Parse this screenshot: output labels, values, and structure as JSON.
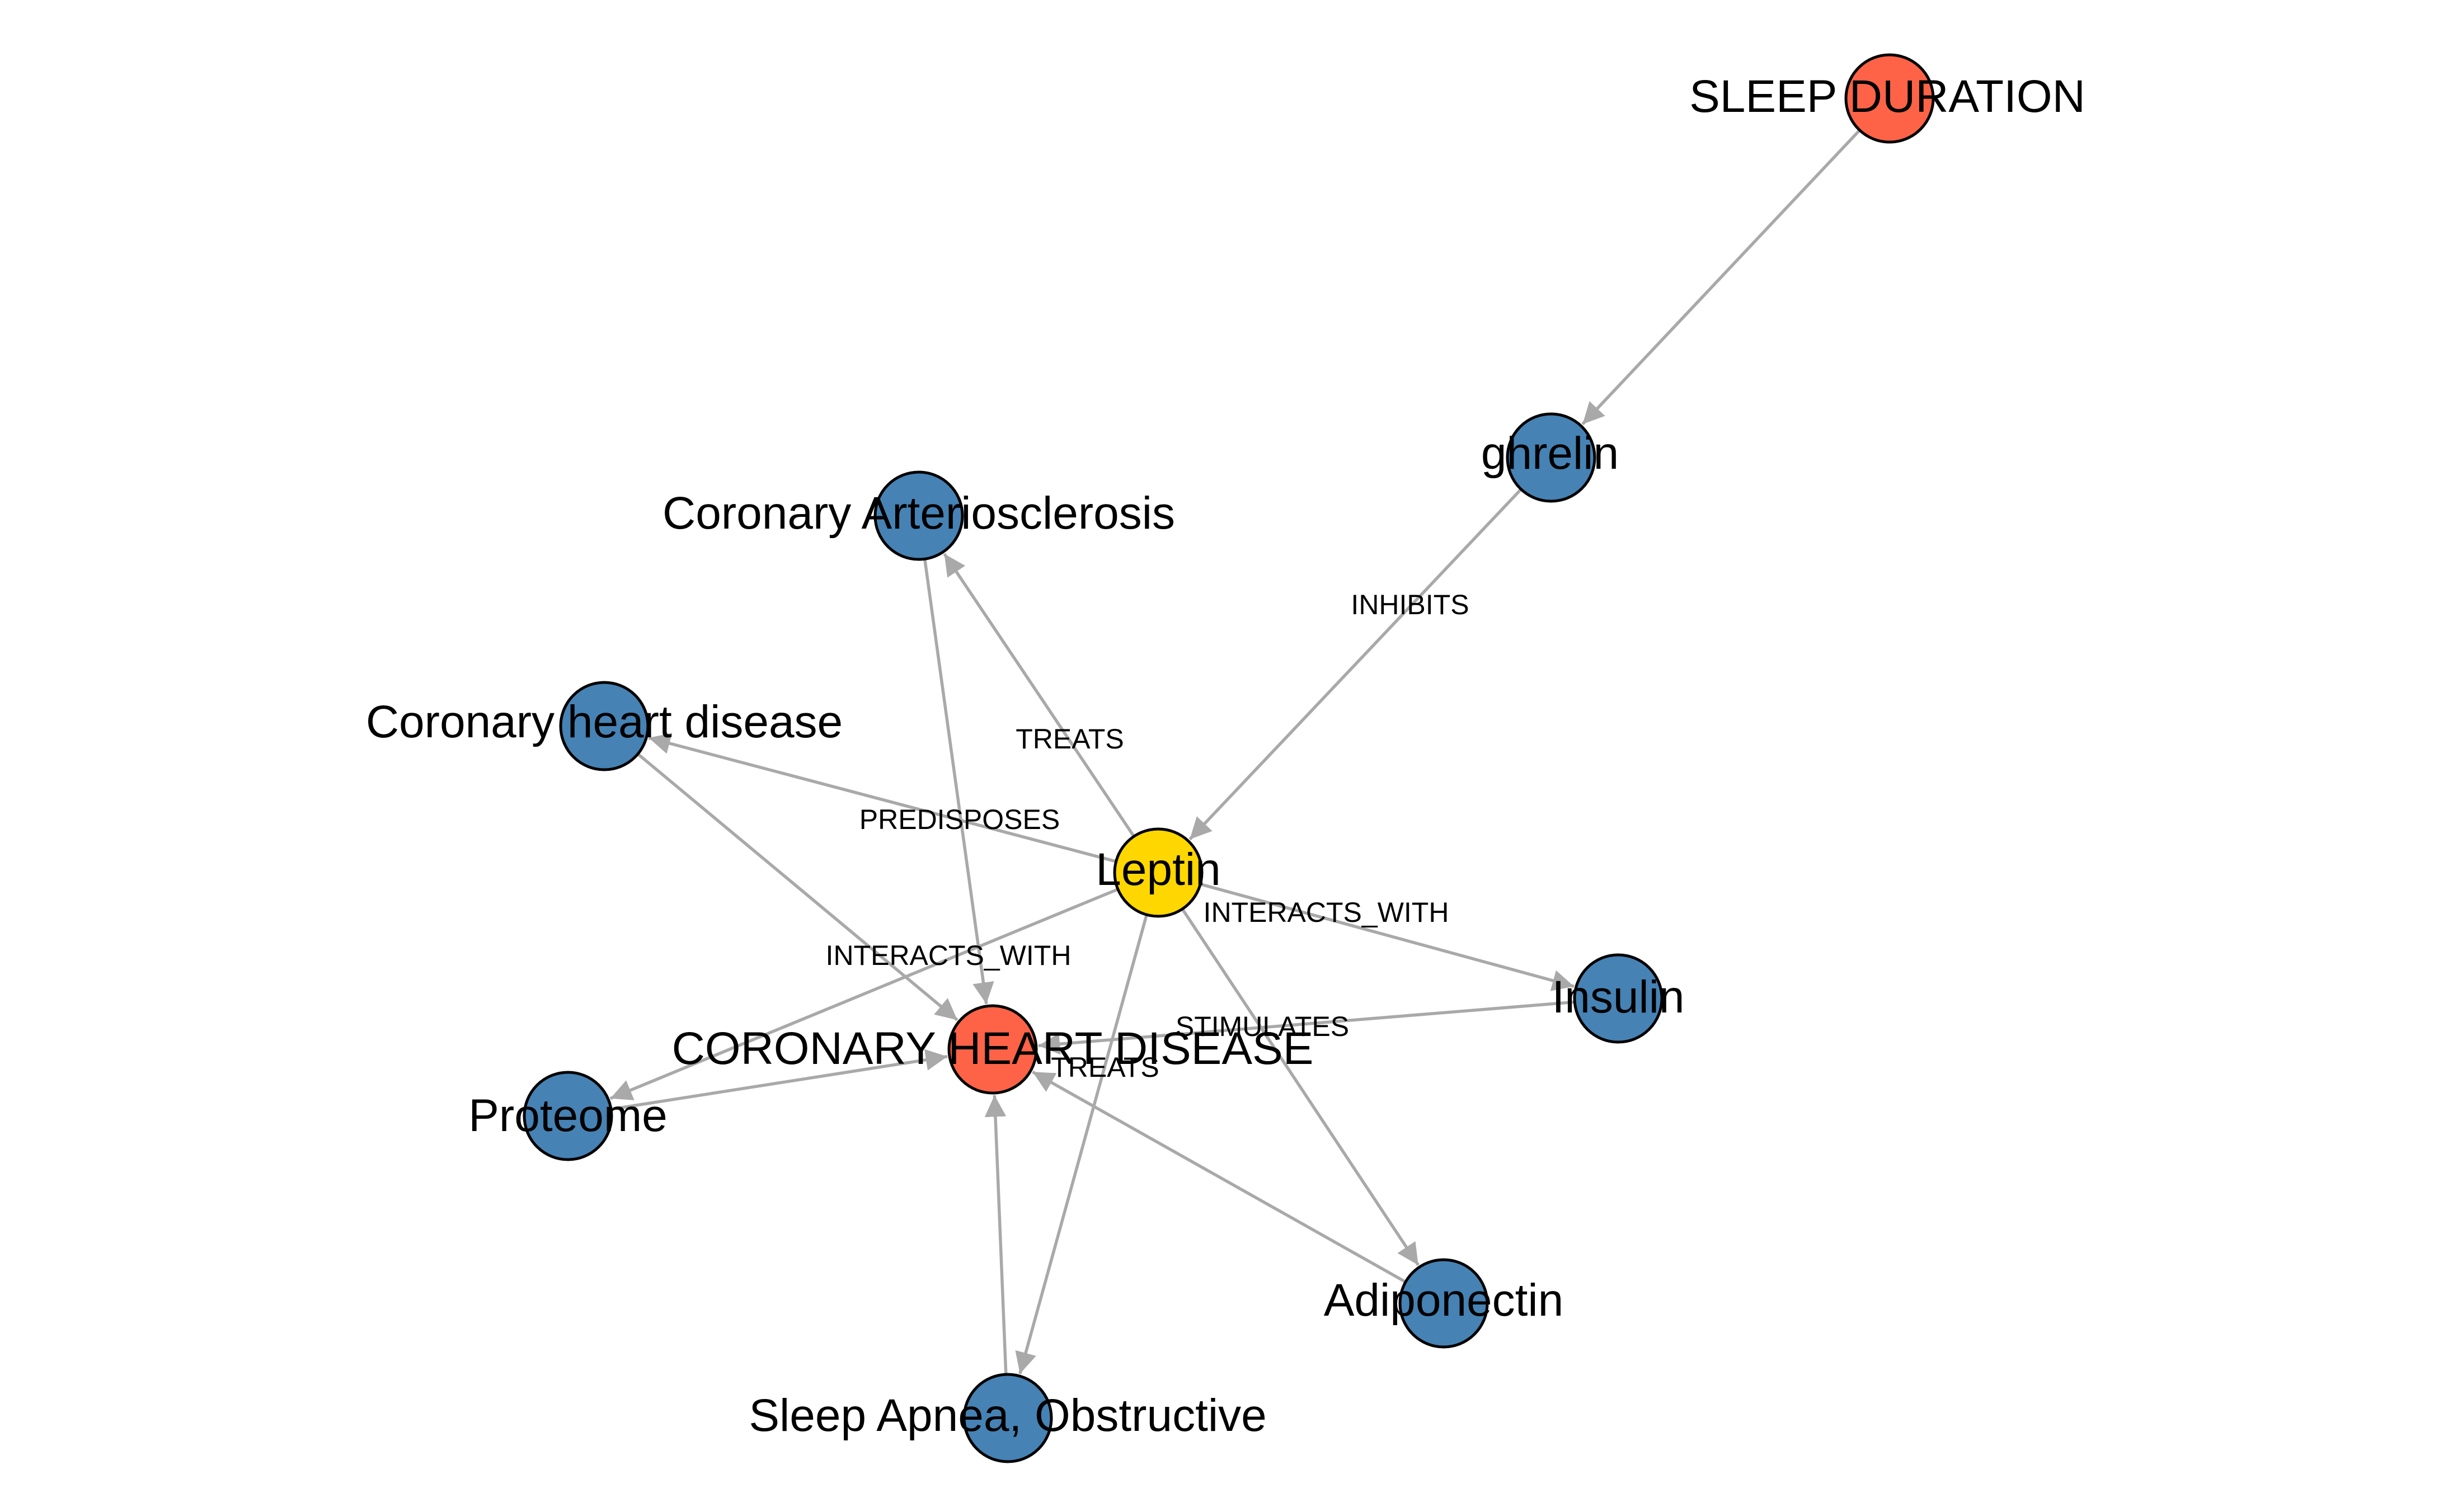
{
  "diagram": {
    "type": "network-graph",
    "colors": {
      "edge": "#a9a9a9",
      "node_outline": "#000000",
      "intermediate": "#4682b4",
      "endpoint": "#ff6347",
      "focus": "#ffd700"
    },
    "nodes": [
      {
        "id": "sleep_duration",
        "label": "SLEEP DURATION",
        "role": "endpoint"
      },
      {
        "id": "ghrelin",
        "label": "ghrelin",
        "role": "intermediate"
      },
      {
        "id": "coronary_arteriosclerosis",
        "label": "Coronary Arteriosclerosis",
        "role": "intermediate"
      },
      {
        "id": "coronary_heart_disease_lc",
        "label": "Coronary heart disease",
        "role": "intermediate"
      },
      {
        "id": "leptin",
        "label": "Leptin",
        "role": "focus"
      },
      {
        "id": "insulin",
        "label": "Insulin",
        "role": "intermediate"
      },
      {
        "id": "coronary_heart_disease",
        "label": "CORONARY HEART DISEASE",
        "role": "endpoint"
      },
      {
        "id": "proteome",
        "label": "Proteome",
        "role": "intermediate"
      },
      {
        "id": "adiponectin",
        "label": "Adiponectin",
        "role": "intermediate"
      },
      {
        "id": "sleep_apnea",
        "label": "Sleep Apnea, Obstructive",
        "role": "intermediate"
      }
    ],
    "edges": [
      {
        "source": "sleep_duration",
        "target": "ghrelin",
        "label": ""
      },
      {
        "source": "ghrelin",
        "target": "leptin",
        "label": "INHIBITS"
      },
      {
        "source": "leptin",
        "target": "coronary_arteriosclerosis",
        "label": "TREATS"
      },
      {
        "source": "leptin",
        "target": "coronary_heart_disease_lc",
        "label": "PREDISPOSES"
      },
      {
        "source": "leptin",
        "target": "insulin",
        "label": "INTERACTS_WITH"
      },
      {
        "source": "leptin",
        "target": "proteome",
        "label": "INTERACTS_WITH"
      },
      {
        "source": "leptin",
        "target": "adiponectin",
        "label": "STIMULATES"
      },
      {
        "source": "leptin",
        "target": "sleep_apnea",
        "label": "TREATS"
      },
      {
        "source": "coronary_arteriosclerosis",
        "target": "coronary_heart_disease",
        "label": ""
      },
      {
        "source": "coronary_heart_disease_lc",
        "target": "coronary_heart_disease",
        "label": ""
      },
      {
        "source": "insulin",
        "target": "coronary_heart_disease",
        "label": ""
      },
      {
        "source": "proteome",
        "target": "coronary_heart_disease",
        "label": ""
      },
      {
        "source": "adiponectin",
        "target": "coronary_heart_disease",
        "label": ""
      },
      {
        "source": "sleep_apnea",
        "target": "coronary_heart_disease",
        "label": ""
      }
    ]
  }
}
